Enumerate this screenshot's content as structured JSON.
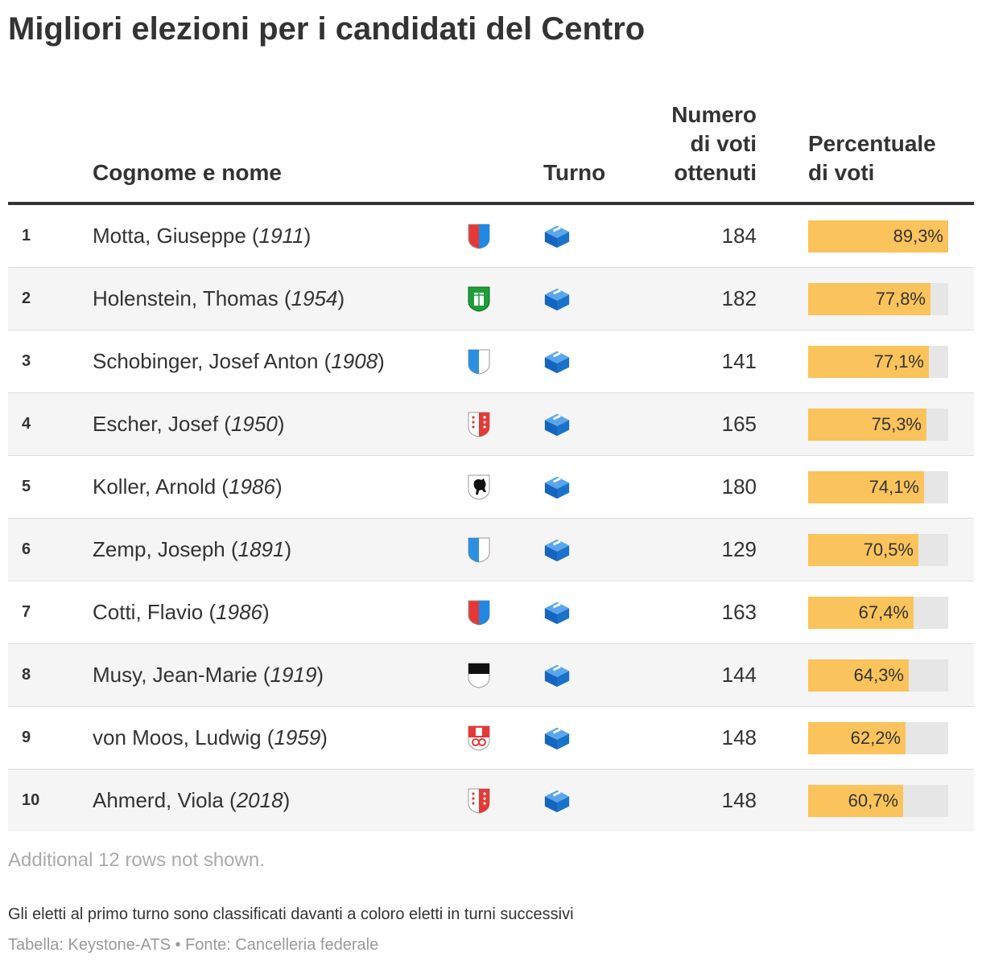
{
  "title": "Migliori elezioni per i candidati del Centro",
  "header": {
    "name": "Cognome e nome",
    "round": "Turno",
    "votes_line1": "Numero",
    "votes_line2": "di voti",
    "votes_line3": "ottenuti",
    "pct_line1": "Percentuale",
    "pct_line2": "di voti"
  },
  "chart_data": {
    "type": "table",
    "columns": [
      "",
      "Cognome e nome",
      "",
      "Turno",
      "Numero di voti ottenuti",
      "Percentuale di voti"
    ],
    "rows": [
      {
        "rank": "1",
        "name": "Motta, Giuseppe",
        "year": "1911",
        "canton": "Ticino",
        "votes": "184",
        "pct_label": "89,3%",
        "pct": 89.3
      },
      {
        "rank": "2",
        "name": "Holenstein, Thomas",
        "year": "1954",
        "canton": "St. Gallen",
        "votes": "182",
        "pct_label": "77,8%",
        "pct": 77.8
      },
      {
        "rank": "3",
        "name": "Schobinger, Josef Anton",
        "year": "1908",
        "canton": "Lucerne",
        "votes": "141",
        "pct_label": "77,1%",
        "pct": 77.1
      },
      {
        "rank": "4",
        "name": "Escher, Josef",
        "year": "1950",
        "canton": "Valais",
        "votes": "165",
        "pct_label": "75,3%",
        "pct": 75.3
      },
      {
        "rank": "5",
        "name": "Koller, Arnold",
        "year": "1986",
        "canton": "Appenzell",
        "votes": "180",
        "pct_label": "74,1%",
        "pct": 74.1
      },
      {
        "rank": "6",
        "name": "Zemp, Joseph",
        "year": "1891",
        "canton": "Lucerne",
        "votes": "129",
        "pct_label": "70,5%",
        "pct": 70.5
      },
      {
        "rank": "7",
        "name": "Cotti, Flavio",
        "year": "1986",
        "canton": "Ticino",
        "votes": "163",
        "pct_label": "67,4%",
        "pct": 67.4
      },
      {
        "rank": "8",
        "name": "Musy, Jean-Marie",
        "year": "1919",
        "canton": "Fribourg",
        "votes": "144",
        "pct_label": "64,3%",
        "pct": 64.3
      },
      {
        "rank": "9",
        "name": "von Moos, Ludwig",
        "year": "1959",
        "canton": "Obwalden",
        "votes": "148",
        "pct_label": "62,2%",
        "pct": 62.2
      },
      {
        "rank": "10",
        "name": "Ahmerd, Viola",
        "year": "2018",
        "canton": "Valais",
        "votes": "148",
        "pct_label": "60,7%",
        "pct": 60.7
      }
    ],
    "bar_max": 100
  },
  "footer": {
    "more": "Additional 12 rows not shown.",
    "note": "Gli eletti al primo turno sono classificati davanti a coloro eletti in turni successivi",
    "source": "Tabella: Keystone-ATS • Fonte: Cancelleria federale"
  },
  "colors": {
    "bar": "#fbc35b",
    "track": "#e6e6e6",
    "ballot": "#1a73c9"
  }
}
